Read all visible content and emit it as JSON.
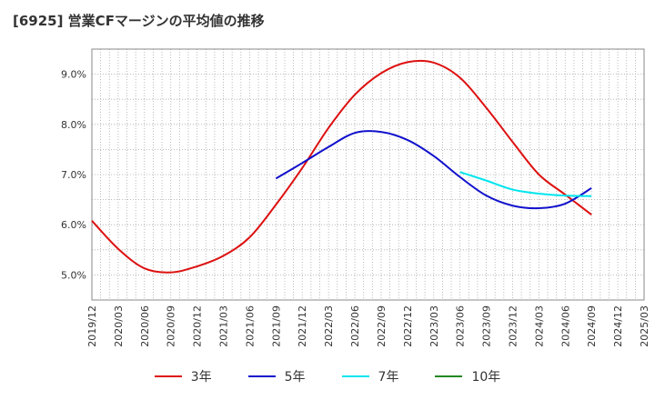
{
  "chart_data": {
    "type": "line",
    "title": "[6925]  営業CFマージンの平均値の推移",
    "xlabel": "",
    "ylabel": "",
    "ylim": [
      4.5,
      9.5
    ],
    "yticks": [
      5.0,
      6.0,
      7.0,
      8.0,
      9.0
    ],
    "ytick_labels": [
      "5.0%",
      "6.0%",
      "7.0%",
      "8.0%",
      "9.0%"
    ],
    "xlim": [
      "2019-12",
      "2025-03"
    ],
    "xtick_labels": [
      "2019/12",
      "2020/03",
      "2020/06",
      "2020/09",
      "2020/12",
      "2021/03",
      "2021/06",
      "2021/09",
      "2021/12",
      "2022/03",
      "2022/06",
      "2022/09",
      "2022/12",
      "2023/03",
      "2023/06",
      "2023/09",
      "2023/12",
      "2024/03",
      "2024/06",
      "2024/09",
      "2024/12",
      "2025/03"
    ],
    "grid": true,
    "legend_position": "bottom",
    "series": [
      {
        "name": "3年",
        "color": "#dd1111",
        "x": [
          "2019-12",
          "2020-03",
          "2020-06",
          "2020-09",
          "2020-12",
          "2021-03",
          "2021-06",
          "2021-09",
          "2021-12",
          "2022-03",
          "2022-06",
          "2022-09",
          "2022-12",
          "2023-03",
          "2023-06",
          "2023-09",
          "2023-12",
          "2024-03",
          "2024-06",
          "2024-09"
        ],
        "values": [
          6.08,
          5.52,
          5.13,
          5.05,
          5.17,
          5.38,
          5.75,
          6.4,
          7.13,
          7.93,
          8.59,
          9.02,
          9.24,
          9.23,
          8.93,
          8.33,
          7.65,
          7.0,
          6.6,
          6.2
        ]
      },
      {
        "name": "5年",
        "color": "#1111cc",
        "x": [
          "2021-09",
          "2021-12",
          "2022-03",
          "2022-06",
          "2022-09",
          "2022-12",
          "2023-03",
          "2023-06",
          "2023-09",
          "2023-12",
          "2024-03",
          "2024-06",
          "2024-09"
        ],
        "values": [
          6.92,
          7.23,
          7.55,
          7.83,
          7.85,
          7.69,
          7.37,
          6.95,
          6.58,
          6.38,
          6.33,
          6.42,
          6.73
        ]
      },
      {
        "name": "7年",
        "color": "#00e5ee",
        "x": [
          "2023-06",
          "2023-09",
          "2023-12",
          "2024-03",
          "2024-06",
          "2024-09"
        ],
        "values": [
          7.05,
          6.88,
          6.7,
          6.62,
          6.58,
          6.57
        ]
      },
      {
        "name": "10年",
        "color": "#228822",
        "x": [],
        "values": []
      }
    ]
  }
}
